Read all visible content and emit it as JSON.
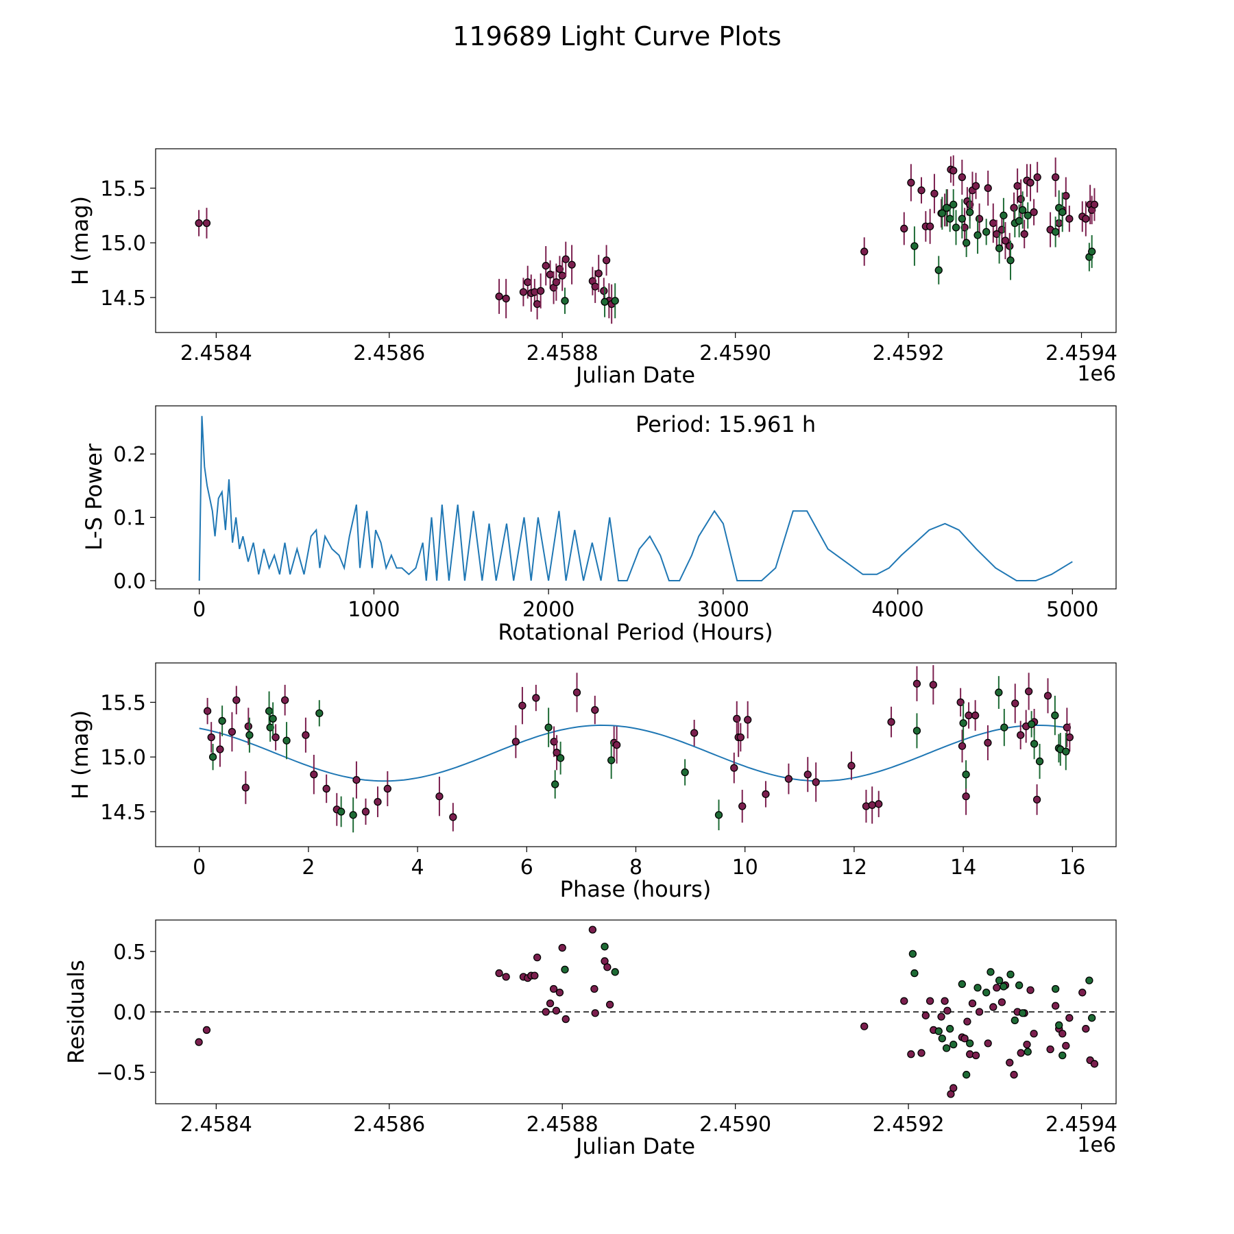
{
  "title": "119689 Light Curve Plots",
  "colors": {
    "purple": "#7b1f4e",
    "green": "#1e6b35",
    "line": "#1f77b4",
    "edge": "#000000"
  },
  "chart_data": [
    {
      "type": "scatter",
      "name": "light-curve",
      "xlabel": "Julian Date",
      "ylabel": "H (mag)",
      "offset_label": "1e6",
      "xlim": [
        2458330,
        2459440
      ],
      "ylim": [
        14.18,
        15.86
      ],
      "xticks": [
        2458400,
        2458600,
        2458800,
        2459000,
        2459200,
        2459400
      ],
      "xtick_labels": [
        "2.4584",
        "2.4586",
        "2.4588",
        "2.4590",
        "2.4592",
        "2.4594"
      ],
      "yticks": [
        14.5,
        15.0,
        15.5
      ],
      "ytick_labels": [
        "14.5",
        "15.0",
        "15.5"
      ],
      "series": [
        {
          "name": "purple",
          "x": [
            2458380,
            2458389,
            2458727,
            2458735,
            2458755,
            2458760,
            2458764,
            2458768,
            2458771,
            2458775,
            2458781,
            2458786,
            2458790,
            2458793,
            2458797,
            2458800,
            2458804,
            2458811,
            2458835,
            2458838,
            2458842,
            2458848,
            2458851,
            2458854,
            2458857,
            2459149,
            2459195,
            2459203,
            2459215,
            2459220,
            2459225,
            2459230,
            2459238,
            2459242,
            2459245,
            2459249,
            2459252,
            2459262,
            2459265,
            2459268,
            2459271,
            2459274,
            2459278,
            2459282,
            2459292,
            2459298,
            2459302,
            2459308,
            2459312,
            2459317,
            2459322,
            2459326,
            2459330,
            2459334,
            2459337,
            2459341,
            2459345,
            2459349,
            2459364,
            2459370,
            2459374,
            2459378,
            2459382,
            2459386,
            2459401,
            2459405,
            2459410,
            2459412,
            2459415
          ],
          "y": [
            15.18,
            15.18,
            14.51,
            14.49,
            14.55,
            14.64,
            14.54,
            14.55,
            14.44,
            14.56,
            14.79,
            14.71,
            14.59,
            14.64,
            14.76,
            14.7,
            14.85,
            14.8,
            14.65,
            14.6,
            14.72,
            14.56,
            14.84,
            14.47,
            14.44,
            14.92,
            15.13,
            15.55,
            15.48,
            15.15,
            15.15,
            15.45,
            15.27,
            15.3,
            15.32,
            15.67,
            15.66,
            15.6,
            15.14,
            15.38,
            15.35,
            15.48,
            15.52,
            15.22,
            15.5,
            15.18,
            15.08,
            15.12,
            15.02,
            14.97,
            15.32,
            15.52,
            15.4,
            15.08,
            15.57,
            15.55,
            15.28,
            15.6,
            15.12,
            15.6,
            15.18,
            15.3,
            15.43,
            15.22,
            15.24,
            15.22,
            15.35,
            15.3,
            15.35
          ]
        },
        {
          "name": "green",
          "x": [
            2458803,
            2458849,
            2458861,
            2459207,
            2459235,
            2459239,
            2459244,
            2459248,
            2459252,
            2459255,
            2459262,
            2459267,
            2459271,
            2459280,
            2459290,
            2459305,
            2459310,
            2459318,
            2459323,
            2459328,
            2459332,
            2459338,
            2459370,
            2459374,
            2459378,
            2459409,
            2459412
          ],
          "y": [
            14.47,
            14.46,
            14.47,
            14.97,
            14.75,
            15.27,
            15.32,
            15.22,
            15.35,
            15.14,
            15.22,
            15.0,
            15.28,
            15.07,
            15.1,
            14.95,
            15.25,
            14.84,
            15.18,
            15.2,
            15.3,
            15.25,
            15.1,
            15.32,
            15.28,
            14.87,
            14.92
          ]
        }
      ]
    },
    {
      "type": "line",
      "name": "periodogram",
      "xlabel": "Rotational Period (Hours)",
      "ylabel": "L-S Power",
      "annotation": "Period: 15.961 h",
      "xlim": [
        -250,
        5250
      ],
      "ylim": [
        -0.013,
        0.276
      ],
      "xticks": [
        0,
        1000,
        2000,
        3000,
        4000,
        5000
      ],
      "xtick_labels": [
        "0",
        "1000",
        "2000",
        "3000",
        "4000",
        "5000"
      ],
      "yticks": [
        0.0,
        0.1,
        0.2
      ],
      "ytick_labels": [
        "0.0",
        "0.1",
        "0.2"
      ],
      "series": [
        {
          "name": "power",
          "x": [
            0,
            15,
            30,
            45,
            60,
            75,
            90,
            110,
            130,
            150,
            170,
            190,
            210,
            230,
            250,
            280,
            310,
            340,
            370,
            400,
            430,
            460,
            490,
            520,
            560,
            600,
            640,
            670,
            690,
            720,
            760,
            800,
            830,
            860,
            900,
            920,
            960,
            990,
            1010,
            1040,
            1070,
            1100,
            1130,
            1160,
            1200,
            1240,
            1280,
            1300,
            1330,
            1360,
            1390,
            1430,
            1480,
            1520,
            1570,
            1620,
            1660,
            1700,
            1760,
            1800,
            1860,
            1900,
            1940,
            2000,
            2060,
            2100,
            2150,
            2200,
            2250,
            2300,
            2350,
            2400,
            2450,
            2520,
            2580,
            2640,
            2690,
            2750,
            2820,
            2860,
            2950,
            3000,
            3080,
            3150,
            3220,
            3300,
            3400,
            3480,
            3540,
            3600,
            3700,
            3800,
            3880,
            3950,
            4020,
            4100,
            4180,
            4270,
            4350,
            4450,
            4560,
            4680,
            4790,
            4880,
            5000
          ],
          "y": [
            0.0,
            0.26,
            0.18,
            0.15,
            0.13,
            0.11,
            0.07,
            0.13,
            0.14,
            0.08,
            0.16,
            0.06,
            0.1,
            0.05,
            0.07,
            0.03,
            0.06,
            0.01,
            0.05,
            0.02,
            0.04,
            0.01,
            0.06,
            0.01,
            0.05,
            0.01,
            0.07,
            0.08,
            0.02,
            0.07,
            0.05,
            0.04,
            0.02,
            0.07,
            0.12,
            0.02,
            0.11,
            0.02,
            0.08,
            0.06,
            0.02,
            0.04,
            0.02,
            0.02,
            0.01,
            0.02,
            0.06,
            0.0,
            0.1,
            0.0,
            0.12,
            0.0,
            0.12,
            0.0,
            0.11,
            0.0,
            0.09,
            0.0,
            0.09,
            0.0,
            0.1,
            0.0,
            0.1,
            0.0,
            0.11,
            0.0,
            0.08,
            0.0,
            0.06,
            0.0,
            0.1,
            0.0,
            0.0,
            0.05,
            0.07,
            0.04,
            0.0,
            0.0,
            0.04,
            0.07,
            0.11,
            0.09,
            0.0,
            0.0,
            0.0,
            0.02,
            0.11,
            0.11,
            0.08,
            0.05,
            0.03,
            0.01,
            0.01,
            0.02,
            0.04,
            0.06,
            0.08,
            0.09,
            0.08,
            0.05,
            0.02,
            0.0,
            0.0,
            0.01,
            0.03
          ]
        }
      ]
    },
    {
      "type": "scatter",
      "name": "phase-folded",
      "xlabel": "Phase (hours)",
      "ylabel": "H (mag)",
      "xlim": [
        -0.8,
        16.8
      ],
      "ylim": [
        14.18,
        15.86
      ],
      "xticks": [
        0,
        2,
        4,
        6,
        8,
        10,
        12,
        14,
        16
      ],
      "xtick_labels": [
        "0",
        "2",
        "4",
        "6",
        "8",
        "10",
        "12",
        "14",
        "16"
      ],
      "yticks": [
        14.5,
        15.0,
        15.5
      ],
      "ytick_labels": [
        "14.5",
        "15.0",
        "15.5"
      ],
      "fit": {
        "mean": 15.035,
        "amplitude": 0.255,
        "period": 7.98,
        "peak_phase": 7.38,
        "x_start": 0,
        "x_end": 15.96
      },
      "series": [
        {
          "name": "purple",
          "x": [
            0.15,
            0.22,
            0.38,
            0.6,
            0.68,
            0.85,
            0.9,
            1.4,
            1.57,
            1.95,
            2.1,
            2.33,
            2.52,
            2.88,
            3.05,
            3.27,
            3.45,
            4.4,
            4.65,
            5.8,
            5.92,
            6.17,
            6.5,
            6.55,
            6.92,
            7.25,
            7.6,
            7.65,
            9.07,
            9.8,
            9.85,
            9.88,
            9.92,
            9.95,
            10.05,
            10.38,
            10.8,
            11.15,
            11.3,
            11.95,
            12.22,
            12.33,
            12.45,
            12.68,
            13.15,
            13.45,
            13.95,
            13.98,
            14.05,
            14.1,
            14.22,
            14.45,
            14.95,
            15.05,
            15.15,
            15.2,
            15.3,
            15.35,
            15.55,
            15.9,
            15.95
          ],
          "y": [
            15.42,
            15.18,
            15.07,
            15.23,
            15.52,
            14.72,
            15.28,
            15.18,
            15.52,
            15.2,
            14.84,
            14.71,
            14.52,
            14.79,
            14.5,
            14.59,
            14.71,
            14.64,
            14.45,
            15.14,
            15.47,
            15.54,
            15.14,
            15.04,
            15.59,
            15.43,
            15.13,
            15.11,
            15.22,
            14.9,
            15.35,
            15.18,
            15.18,
            14.55,
            15.34,
            14.66,
            14.8,
            14.84,
            14.77,
            14.92,
            14.55,
            14.56,
            14.57,
            15.32,
            15.67,
            15.66,
            15.5,
            15.1,
            14.64,
            15.38,
            15.38,
            15.13,
            15.49,
            15.2,
            15.28,
            15.6,
            15.32,
            14.61,
            15.56,
            15.27,
            15.18
          ]
        },
        {
          "name": "green",
          "x": [
            0.25,
            0.42,
            0.92,
            1.28,
            1.3,
            1.35,
            1.6,
            2.2,
            2.6,
            2.82,
            6.4,
            6.52,
            6.62,
            7.55,
            8.9,
            9.52,
            13.15,
            14.0,
            14.05,
            14.65,
            14.75,
            15.25,
            15.3,
            15.4,
            15.68,
            15.75,
            15.78,
            15.88
          ],
          "y": [
            15.0,
            15.33,
            15.2,
            15.42,
            15.27,
            15.35,
            15.15,
            15.4,
            14.5,
            14.47,
            15.27,
            14.75,
            14.99,
            14.97,
            14.86,
            14.47,
            15.24,
            15.31,
            14.84,
            15.59,
            15.27,
            15.3,
            15.12,
            14.96,
            15.38,
            15.08,
            15.07,
            15.05
          ]
        }
      ]
    },
    {
      "type": "scatter",
      "name": "residuals",
      "xlabel": "Julian Date",
      "ylabel": "Residuals",
      "offset_label": "1e6",
      "reference_line": 0.0,
      "xlim": [
        2458330,
        2459440
      ],
      "ylim": [
        -0.76,
        0.76
      ],
      "xticks": [
        2458400,
        2458600,
        2458800,
        2459000,
        2459200,
        2459400
      ],
      "xtick_labels": [
        "2.4584",
        "2.4586",
        "2.4588",
        "2.4590",
        "2.4592",
        "2.4594"
      ],
      "yticks": [
        -0.5,
        0.0,
        0.5
      ],
      "ytick_labels": [
        "−0.5",
        "0.0",
        "0.5"
      ],
      "series": [
        {
          "name": "purple",
          "x": [
            2458380,
            2458389,
            2458727,
            2458735,
            2458755,
            2458760,
            2458764,
            2458768,
            2458771,
            2458781,
            2458786,
            2458790,
            2458793,
            2458797,
            2458800,
            2458804,
            2458835,
            2458837,
            2458838,
            2458849,
            2458852,
            2458855,
            2459149,
            2459195,
            2459203,
            2459215,
            2459220,
            2459225,
            2459229,
            2459238,
            2459242,
            2459245,
            2459249,
            2459252,
            2459262,
            2459265,
            2459268,
            2459271,
            2459274,
            2459278,
            2459282,
            2459292,
            2459298,
            2459302,
            2459308,
            2459312,
            2459317,
            2459322,
            2459326,
            2459330,
            2459334,
            2459337,
            2459341,
            2459345,
            2459364,
            2459370,
            2459374,
            2459378,
            2459382,
            2459386,
            2459401,
            2459405,
            2459410,
            2459415
          ],
          "y": [
            -0.25,
            -0.15,
            0.32,
            0.29,
            0.29,
            0.28,
            0.3,
            0.3,
            0.45,
            0.0,
            0.07,
            0.19,
            0.01,
            0.16,
            0.53,
            -0.06,
            0.68,
            0.19,
            -0.01,
            0.42,
            0.37,
            0.06,
            -0.12,
            0.09,
            -0.35,
            -0.34,
            -0.03,
            0.09,
            -0.15,
            -0.04,
            0.09,
            0.01,
            -0.68,
            -0.63,
            -0.21,
            -0.22,
            -0.08,
            -0.35,
            0.07,
            -0.36,
            0.0,
            -0.26,
            0.04,
            0.2,
            0.08,
            0.22,
            -0.42,
            -0.52,
            0.0,
            -0.34,
            -0.01,
            -0.27,
            0.18,
            -0.18,
            -0.31,
            0.05,
            -0.14,
            -0.18,
            -0.28,
            -0.05,
            0.16,
            -0.14,
            -0.4,
            -0.43
          ]
        },
        {
          "name": "green",
          "x": [
            2458803,
            2458849,
            2458861,
            2459207,
            2459235,
            2459239,
            2459244,
            2459248,
            2459252,
            2459262,
            2459267,
            2459271,
            2459280,
            2459290,
            2459295,
            2459305,
            2459310,
            2459318,
            2459323,
            2459328,
            2459332,
            2459338,
            2459370,
            2459374,
            2459378,
            2459409,
            2459412,
            2459205
          ],
          "y": [
            0.35,
            0.54,
            0.33,
            0.32,
            -0.16,
            -0.22,
            -0.3,
            -0.14,
            -0.27,
            0.23,
            -0.52,
            -0.26,
            0.2,
            0.16,
            0.33,
            0.26,
            0.21,
            0.31,
            -0.07,
            0.22,
            -0.01,
            -0.33,
            0.19,
            -0.11,
            -0.36,
            0.26,
            -0.05,
            0.48
          ]
        }
      ]
    }
  ]
}
